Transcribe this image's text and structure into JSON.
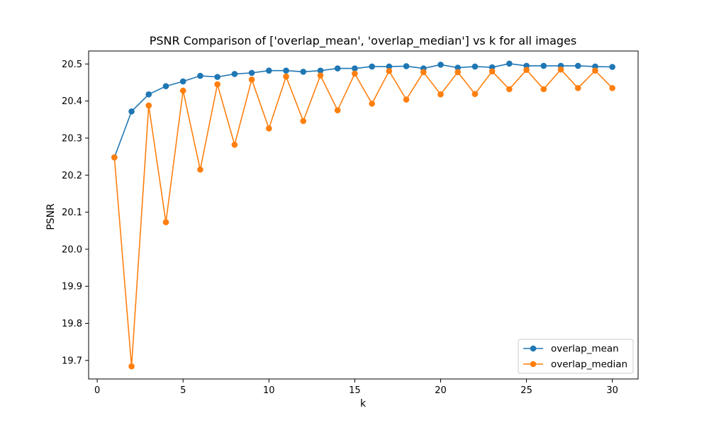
{
  "chart_data": {
    "type": "line",
    "title": "PSNR Comparison of ['overlap_mean', 'overlap_median'] vs k for all images",
    "xlabel": "k",
    "ylabel": "PSNR",
    "xlim": [
      -0.5,
      31.5
    ],
    "ylim": [
      19.65,
      20.535
    ],
    "xticks": [
      0,
      5,
      10,
      15,
      20,
      25,
      30
    ],
    "yticks": [
      19.7,
      19.8,
      19.9,
      20.0,
      20.1,
      20.2,
      20.3,
      20.4,
      20.5
    ],
    "ytick_labels": [
      "19.7",
      "19.8",
      "19.9",
      "20.0",
      "20.1",
      "20.2",
      "20.3",
      "20.4",
      "20.5"
    ],
    "grid": false,
    "legend_position": "lower right",
    "x": [
      1,
      2,
      3,
      4,
      5,
      6,
      7,
      8,
      9,
      10,
      11,
      12,
      13,
      14,
      15,
      16,
      17,
      18,
      19,
      20,
      21,
      22,
      23,
      24,
      25,
      26,
      27,
      28,
      29,
      30
    ],
    "series": [
      {
        "name": "overlap_mean",
        "color": "#1f77b4",
        "marker": "circle",
        "values": [
          20.248,
          20.372,
          20.418,
          20.44,
          20.453,
          20.468,
          20.465,
          20.473,
          20.476,
          20.482,
          20.482,
          20.479,
          20.482,
          20.488,
          20.488,
          20.493,
          20.493,
          20.494,
          20.488,
          20.498,
          20.49,
          20.493,
          20.491,
          20.501,
          20.495,
          20.495,
          20.495,
          20.495,
          20.493,
          20.492
        ]
      },
      {
        "name": "overlap_median",
        "color": "#ff7f0e",
        "marker": "circle",
        "values": [
          20.248,
          19.684,
          20.388,
          20.073,
          20.428,
          20.215,
          20.445,
          20.282,
          20.458,
          20.326,
          20.466,
          20.346,
          20.469,
          20.375,
          20.474,
          20.393,
          20.481,
          20.404,
          20.478,
          20.418,
          20.478,
          20.419,
          20.48,
          20.432,
          20.484,
          20.432,
          20.485,
          20.435,
          20.482,
          20.435
        ]
      }
    ]
  }
}
